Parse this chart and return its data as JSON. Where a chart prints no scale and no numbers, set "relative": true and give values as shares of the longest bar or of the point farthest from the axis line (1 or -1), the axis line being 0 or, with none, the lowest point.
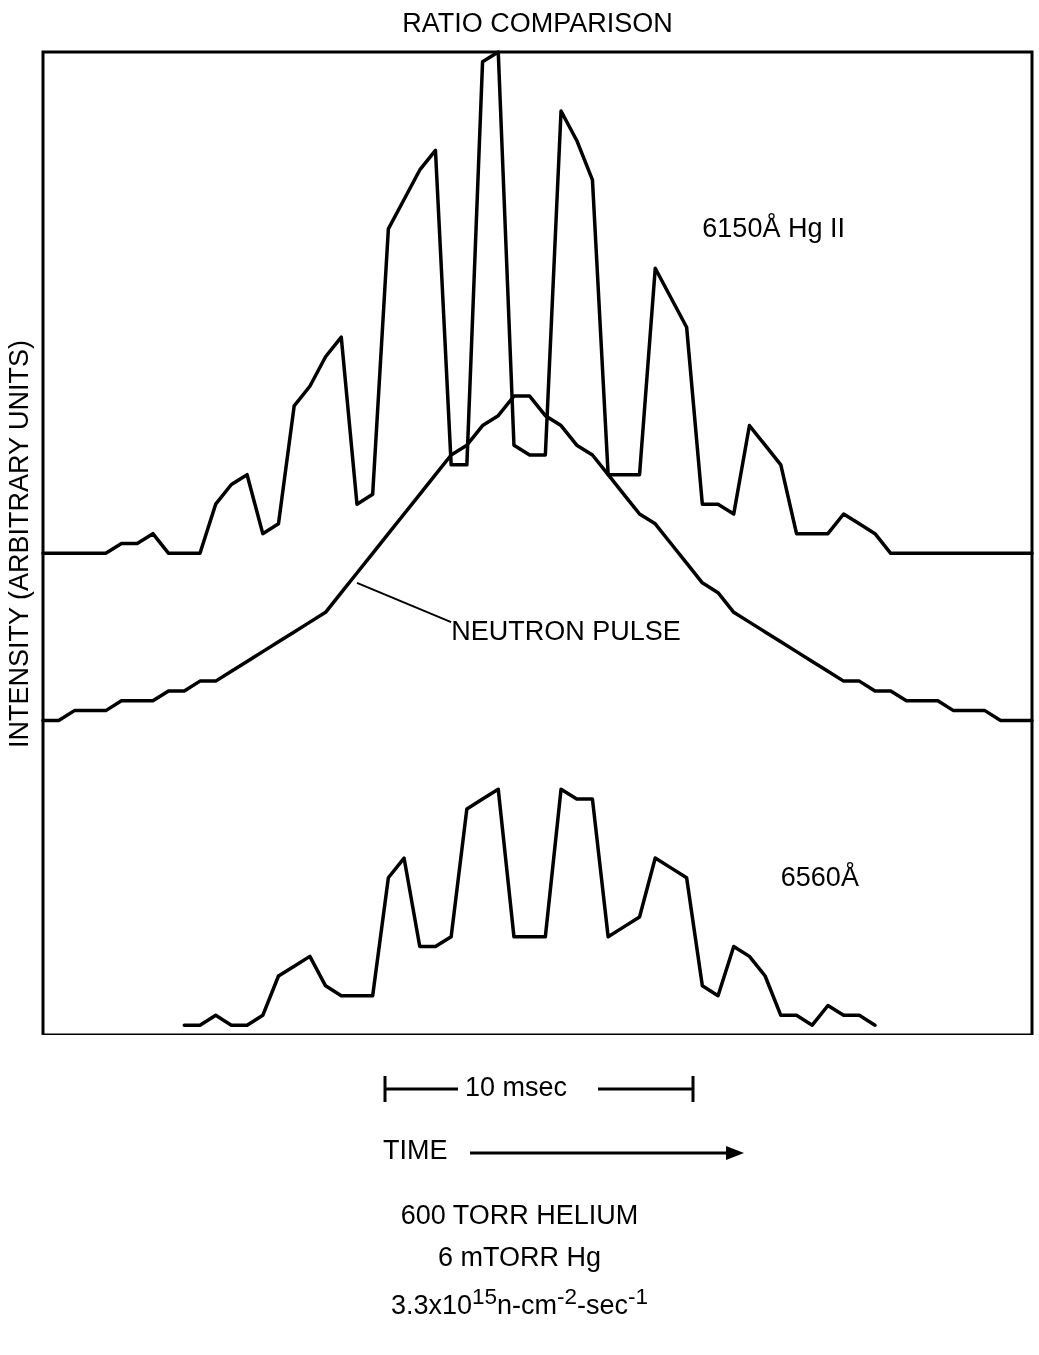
{
  "chart_data": {
    "type": "line",
    "title": "RATIO COMPARISON",
    "ylabel": "INTENSITY (ARBITRARY UNITS)",
    "xlabel": "TIME",
    "relative": true,
    "grid": false,
    "marker": "none",
    "line_style": "solid",
    "annotations": [
      "10 msec",
      "600 TORR HELIUM",
      "6 mTORR Hg",
      "3.3x10$^{15}$n-cm$^{-2}$-sec$^{-1}$"
    ],
    "categories": [
      null,
      null,
      null,
      null,
      null,
      null,
      null,
      null,
      null,
      null,
      null,
      null,
      null,
      null,
      null,
      null,
      null,
      null,
      null,
      null,
      null,
      null,
      null,
      null,
      null,
      null,
      null,
      null,
      null,
      null,
      null,
      null,
      null,
      null,
      null,
      null,
      null,
      null,
      null,
      null,
      null,
      null,
      null,
      null,
      null,
      null,
      null,
      null,
      null,
      null,
      null,
      null,
      null,
      null,
      null,
      null,
      null,
      null,
      null,
      null,
      null,
      null,
      null,
      null
    ],
    "series": [
      {
        "name": "6150Å Hg II",
        "color": "#000000",
        "values": [
          0.49,
          0.49,
          0.49,
          0.49,
          0.49,
          0.5,
          0.5,
          0.51,
          0.49,
          0.49,
          0.49,
          0.54,
          0.56,
          0.57,
          0.51,
          0.52,
          0.64,
          0.66,
          0.69,
          0.71,
          0.54,
          0.55,
          0.82,
          0.85,
          0.88,
          0.9,
          0.58,
          0.58,
          0.99,
          1,
          0.6,
          0.59,
          0.59,
          0.94,
          0.91,
          0.87,
          0.57,
          0.57,
          0.57,
          0.78,
          0.75,
          0.72,
          0.54,
          0.54,
          0.53,
          0.62,
          0.6,
          0.58,
          0.51,
          0.51,
          0.51,
          0.53,
          0.52,
          0.51,
          0.49,
          0.49,
          0.49,
          0.49,
          0.49,
          0.49,
          0.49,
          0.49,
          0.49,
          0.49
        ]
      },
      {
        "name": "NEUTRON PULSE",
        "color": "#000000",
        "values": [
          0.32,
          0.32,
          0.33,
          0.33,
          0.33,
          0.34,
          0.34,
          0.34,
          0.35,
          0.35,
          0.36,
          0.36,
          0.37,
          0.38,
          0.39,
          0.4,
          0.41,
          0.42,
          0.43,
          0.45,
          0.47,
          0.49,
          0.51,
          0.53,
          0.55,
          0.57,
          0.59,
          0.6,
          0.62,
          0.63,
          0.65,
          0.65,
          0.63,
          0.62,
          0.6,
          0.59,
          0.57,
          0.55,
          0.53,
          0.52,
          0.5,
          0.48,
          0.46,
          0.45,
          0.43,
          0.42,
          0.41,
          0.4,
          0.39,
          0.38,
          0.37,
          0.36,
          0.36,
          0.35,
          0.35,
          0.34,
          0.34,
          0.34,
          0.33,
          0.33,
          0.33,
          0.32,
          0.32,
          0.32
        ]
      },
      {
        "name": "6560Å",
        "color": "#000000",
        "values": [
          null,
          null,
          null,
          null,
          null,
          null,
          null,
          null,
          null,
          0.01,
          0.01,
          0.02,
          0.01,
          0.01,
          0.02,
          0.06,
          0.07,
          0.08,
          0.05,
          0.04,
          0.04,
          0.04,
          0.16,
          0.18,
          0.09,
          0.09,
          0.1,
          0.23,
          0.24,
          0.25,
          0.1,
          0.1,
          0.1,
          0.25,
          0.24,
          0.24,
          0.1,
          0.11,
          0.12,
          0.18,
          0.17,
          0.16,
          0.05,
          0.04,
          0.09,
          0.08,
          0.06,
          0.02,
          0.02,
          0.01,
          0.03,
          0.02,
          0.02,
          0.01,
          null,
          null,
          null,
          null,
          null,
          null,
          null,
          null,
          null,
          null
        ]
      }
    ]
  }
}
